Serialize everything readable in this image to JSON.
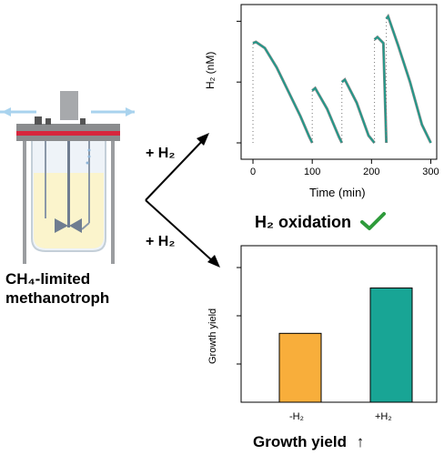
{
  "reactor_label_line1": "CH₄-limited",
  "reactor_label_line2": "methanotroph",
  "arrow_top_label": "+ H₂",
  "arrow_bottom_label": "+ H₂",
  "h2_chart": {
    "ylabel": "H₂ (nM)",
    "xlabel": "Time (min)",
    "x_ticks": [
      "0",
      "100",
      "200",
      "300"
    ],
    "caption": "H₂ oxidation",
    "check_color": "#2e9b3b"
  },
  "growth_chart": {
    "ylabel": "Growth yield",
    "categories": [
      "-H₂",
      "+H₂"
    ],
    "caption": "Growth yield",
    "caption_arrow": "↑"
  },
  "chart_data": [
    {
      "type": "line",
      "xlabel": "Time (min)",
      "ylabel": "H₂ (nM)",
      "xlim": [
        -20,
        310
      ],
      "x_ticks": [
        0,
        100,
        200,
        300
      ],
      "series": [
        {
          "x": [
            0,
            5,
            20,
            40,
            60,
            80,
            95,
            100
          ],
          "y": [
            0.82,
            0.83,
            0.78,
            0.62,
            0.42,
            0.22,
            0.05,
            0.0
          ]
        },
        {
          "x": [
            100,
            105,
            125,
            145,
            150
          ],
          "y": [
            0.43,
            0.45,
            0.28,
            0.05,
            0.0
          ]
        },
        {
          "x": [
            150,
            155,
            175,
            195,
            205
          ],
          "y": [
            0.5,
            0.52,
            0.33,
            0.06,
            0.0
          ]
        },
        {
          "x": [
            205,
            210,
            220,
            225
          ],
          "y": [
            0.85,
            0.87,
            0.82,
            0.0
          ]
        },
        {
          "x": [
            225,
            228,
            245,
            265,
            285,
            300
          ],
          "y": [
            1.02,
            1.04,
            0.8,
            0.5,
            0.15,
            0.0
          ]
        }
      ]
    },
    {
      "type": "bar",
      "ylabel": "Growth yield",
      "categories": [
        "-H₂",
        "+H₂"
      ],
      "values": [
        0.44,
        0.73
      ],
      "ylim": [
        0,
        1
      ],
      "colors": [
        "#f8ae3b",
        "#18a595"
      ]
    }
  ]
}
